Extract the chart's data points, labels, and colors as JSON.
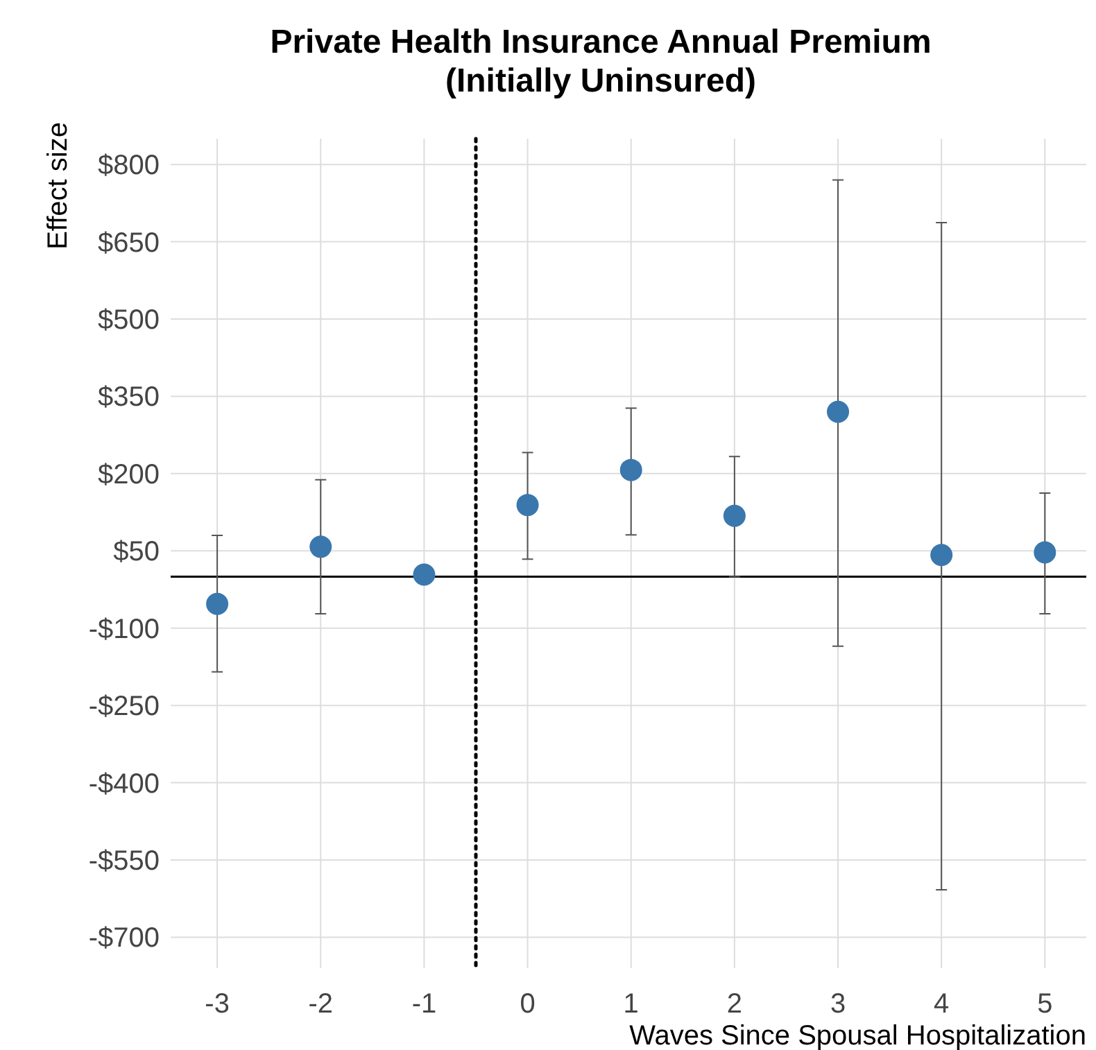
{
  "chart_data": {
    "type": "scatter",
    "title": "Private Health Insurance Annual Premium\n(Initially Uninsured)",
    "xlabel": "Waves Since Spousal Hospitalization",
    "ylabel": "Effect size",
    "x": [
      -3,
      -2,
      -1,
      0,
      1,
      2,
      3,
      4,
      5
    ],
    "values": [
      -53,
      58,
      4,
      139,
      207,
      118,
      320,
      42,
      47
    ],
    "errors": [
      [
        -185,
        80
      ],
      [
        -72,
        188
      ],
      null,
      [
        34,
        241
      ],
      [
        81,
        327
      ],
      [
        0,
        233
      ],
      [
        -135,
        770
      ],
      [
        -608,
        687
      ],
      [
        -72,
        162
      ]
    ],
    "color": "#3a77ad",
    "marker": "circle",
    "grid": true,
    "xlim": [
      -3.45,
      5.4
    ],
    "xticks": [
      -3,
      -2,
      -1,
      0,
      1,
      2,
      3,
      4,
      5
    ],
    "ylim": [
      -760,
      850
    ],
    "yticks": [
      {
        "value": -700,
        "label": "-$700"
      },
      {
        "value": -550,
        "label": "-$550"
      },
      {
        "value": -400,
        "label": "-$400"
      },
      {
        "value": -250,
        "label": "-$250"
      },
      {
        "value": -100,
        "label": "-$100"
      },
      {
        "value": 50,
        "label": "$50"
      },
      {
        "value": 200,
        "label": "$200"
      },
      {
        "value": 350,
        "label": "$350"
      },
      {
        "value": 500,
        "label": "$500"
      },
      {
        "value": 650,
        "label": "$650"
      },
      {
        "value": 800,
        "label": "$800"
      }
    ],
    "ref_lines": [
      {
        "axis": "x",
        "value": -0.5,
        "color": "#000000",
        "line_style": "dotted"
      },
      {
        "axis": "y",
        "value": 0,
        "color": "#000000",
        "line_style": "solid"
      }
    ]
  }
}
